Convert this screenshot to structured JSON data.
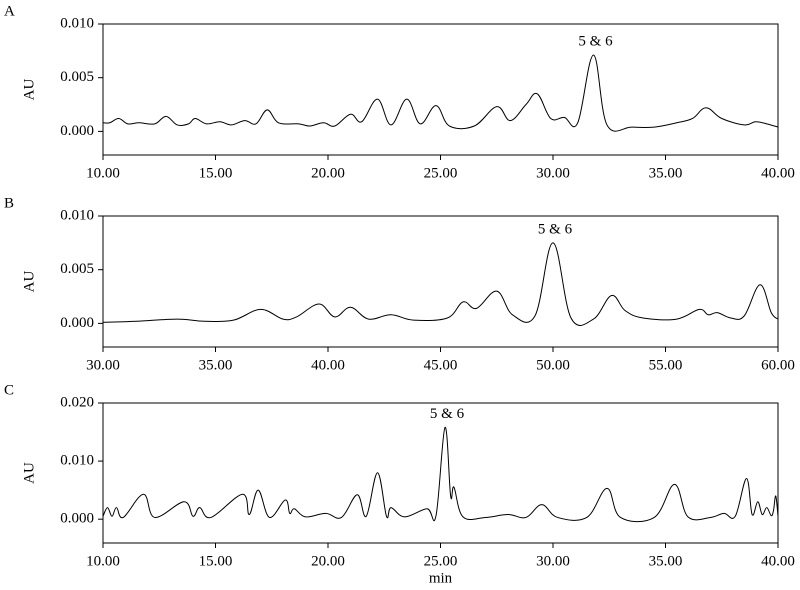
{
  "chart_data": [
    {
      "type": "line",
      "label": "A",
      "ylabel": "AU",
      "annotation": "5 & 6",
      "color": "#000000",
      "x": [
        10,
        10.3,
        10.7,
        11.1,
        11.6,
        12.3,
        12.8,
        13.3,
        13.8,
        14.1,
        14.6,
        15.2,
        15.7,
        16.3,
        16.8,
        17.3,
        17.8,
        18.7,
        19.2,
        19.8,
        20.3,
        21.0,
        21.5,
        22.2,
        22.8,
        23.5,
        24.1,
        24.8,
        25.4,
        26.5,
        27.5,
        28.1,
        28.8,
        29.3,
        29.9,
        30.5,
        31.1,
        31.8,
        32.4,
        33.5,
        34.5,
        35.5,
        36.2,
        36.8,
        37.5,
        38.5,
        39.0,
        39.5,
        40
      ],
      "values": [
        0.0008,
        0.0008,
        0.0012,
        0.0007,
        0.0008,
        0.0007,
        0.0014,
        0.0006,
        0.0007,
        0.0012,
        0.0007,
        0.0009,
        0.0006,
        0.001,
        0.0007,
        0.002,
        0.0008,
        0.0007,
        0.0005,
        0.0008,
        0.0005,
        0.0016,
        0.0009,
        0.003,
        0.0006,
        0.003,
        0.0007,
        0.0024,
        0.0005,
        0.0005,
        0.0023,
        0.001,
        0.0025,
        0.0035,
        0.0012,
        0.0013,
        0.0008,
        0.0071,
        0.0006,
        0.0004,
        0.0004,
        0.0008,
        0.0012,
        0.0022,
        0.0012,
        0.0006,
        0.0009,
        0.0007,
        0.0004
      ],
      "xlim": [
        10,
        40
      ],
      "ylim": [
        -0.0022,
        0.01
      ],
      "xticks": [
        {
          "value": 10,
          "label": "10.00"
        },
        {
          "value": 15,
          "label": "15.00"
        },
        {
          "value": 20,
          "label": "20.00"
        },
        {
          "value": 25,
          "label": "25.00"
        },
        {
          "value": 30,
          "label": "30.00"
        },
        {
          "value": 35,
          "label": "35.00"
        },
        {
          "value": 40,
          "label": "40.00"
        }
      ],
      "yticks": [
        {
          "value": 0,
          "label": "0.000"
        },
        {
          "value": 0.005,
          "label": "0.005"
        },
        {
          "value": 0.01,
          "label": "0.010"
        }
      ]
    },
    {
      "type": "line",
      "label": "B",
      "ylabel": "AU",
      "annotation": "5 & 6",
      "color": "#000000",
      "x": [
        30,
        31.5,
        33.3,
        34.5,
        35.8,
        37.0,
        38.0,
        38.6,
        39.6,
        40.3,
        41.0,
        41.8,
        42.8,
        43.8,
        45.3,
        46.0,
        46.6,
        47.5,
        48.2,
        49.2,
        50.0,
        50.8,
        51.8,
        52.6,
        53.2,
        54.0,
        55.5,
        56.5,
        56.9,
        57.3,
        57.9,
        58.5,
        59.2,
        59.7,
        60
      ],
      "values": [
        0.0001,
        0.0002,
        0.0004,
        0.0002,
        0.0003,
        0.0013,
        0.0004,
        0.0006,
        0.0018,
        0.0006,
        0.0015,
        0.0004,
        0.0008,
        0.0003,
        0.0005,
        0.002,
        0.0014,
        0.003,
        0.0008,
        0.0007,
        0.0075,
        0.0005,
        0.0004,
        0.0026,
        0.0012,
        0.0005,
        0.0004,
        0.0013,
        0.0008,
        0.001,
        0.0005,
        0.0007,
        0.0036,
        0.001,
        0.0004
      ],
      "xlim": [
        30,
        60
      ],
      "ylim": [
        -0.0022,
        0.01
      ],
      "xticks": [
        {
          "value": 30,
          "label": "30.00"
        },
        {
          "value": 35,
          "label": "35.00"
        },
        {
          "value": 40,
          "label": "40.00"
        },
        {
          "value": 45,
          "label": "45.00"
        },
        {
          "value": 50,
          "label": "50.00"
        },
        {
          "value": 55,
          "label": "55.00"
        },
        {
          "value": 60,
          "label": "60.00"
        }
      ],
      "yticks": [
        {
          "value": 0,
          "label": "0.000"
        },
        {
          "value": 0.005,
          "label": "0.005"
        },
        {
          "value": 0.01,
          "label": "0.010"
        }
      ]
    },
    {
      "type": "line",
      "label": "C",
      "ylabel": "AU",
      "xlabel": "min",
      "annotation": "5 & 6",
      "color": "#000000",
      "x": [
        10,
        10.2,
        10.4,
        10.6,
        10.9,
        11.8,
        12.3,
        13.6,
        14.0,
        14.3,
        14.8,
        16.2,
        16.5,
        16.9,
        17.4,
        18.1,
        18.3,
        18.5,
        19.0,
        19.9,
        20.6,
        21.3,
        21.7,
        22.2,
        22.6,
        22.8,
        23.4,
        24.4,
        24.8,
        25.2,
        25.45,
        25.6,
        26.0,
        27.0,
        28.0,
        28.8,
        29.5,
        30.2,
        31.5,
        32.4,
        33.0,
        34.5,
        35.4,
        36.0,
        37.0,
        37.6,
        38.1,
        38.6,
        38.85,
        39.1,
        39.3,
        39.5,
        39.7,
        39.8,
        39.9,
        40
      ],
      "values": [
        0.0005,
        0.002,
        0.0005,
        0.002,
        0.0003,
        0.0043,
        0.0003,
        0.003,
        0.0005,
        0.002,
        0.0003,
        0.0043,
        0.0008,
        0.005,
        0.0003,
        0.0033,
        0.001,
        0.0018,
        0.0004,
        0.001,
        0.0003,
        0.0042,
        0.0005,
        0.008,
        0.0005,
        0.002,
        0.0004,
        0.0018,
        0.0006,
        0.0158,
        0.004,
        0.0055,
        0.0004,
        0.0003,
        0.0008,
        0.0003,
        0.0025,
        0.0003,
        0.0003,
        0.0053,
        0.0003,
        0.0003,
        0.006,
        0.0004,
        0.0003,
        0.001,
        0.0005,
        0.007,
        0.0008,
        0.003,
        0.0008,
        0.002,
        0.0006,
        0.0015,
        0.004,
        0.0005
      ],
      "xlim": [
        10,
        40
      ],
      "ylim": [
        -0.0041,
        0.02
      ],
      "xticks": [
        {
          "value": 10,
          "label": "10.00"
        },
        {
          "value": 15,
          "label": "15.00"
        },
        {
          "value": 20,
          "label": "20.00"
        },
        {
          "value": 25,
          "label": "25.00"
        },
        {
          "value": 30,
          "label": "30.00"
        },
        {
          "value": 35,
          "label": "35.00"
        },
        {
          "value": 40,
          "label": "40.00"
        }
      ],
      "yticks": [
        {
          "value": 0,
          "label": "0.000"
        },
        {
          "value": 0.01,
          "label": "0.010"
        },
        {
          "value": 0.02,
          "label": "0.020"
        }
      ]
    }
  ]
}
